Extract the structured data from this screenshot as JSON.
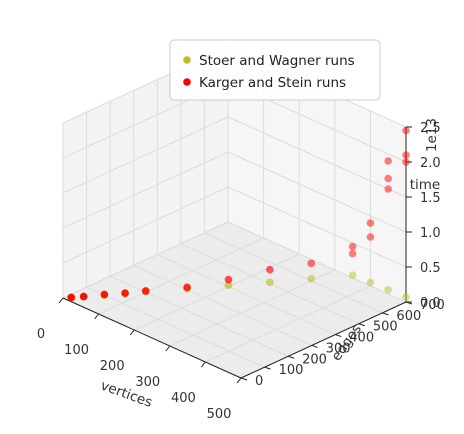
{
  "chart_data": {
    "type": "scatter",
    "projection": "3d",
    "grid": true,
    "legend_placement": "top-right",
    "xlabel": "vertices",
    "ylabel": "edges",
    "zlabel": "time",
    "z_offset_label": "1e13",
    "xlim": [
      0,
      500
    ],
    "ylim": [
      0,
      700
    ],
    "zlim": [
      0,
      2.5
    ],
    "x_ticks": [
      "0",
      "100",
      "200",
      "300",
      "400",
      "500"
    ],
    "y_ticks": [
      "0",
      "100",
      "200",
      "300",
      "400",
      "500",
      "600",
      "700"
    ],
    "z_ticks": [
      "0.0",
      "0.5",
      "1.0",
      "1.5",
      "2.0",
      "2.5"
    ],
    "series": [
      {
        "name": "Stoer and Wagner runs",
        "color": "#bcbd22",
        "points": [
          {
            "x": 10,
            "y": 20,
            "z": 0.0
          },
          {
            "x": 25,
            "y": 50,
            "z": 0.0
          },
          {
            "x": 50,
            "y": 100,
            "z": 0.0
          },
          {
            "x": 75,
            "y": 150,
            "z": 0.0
          },
          {
            "x": 100,
            "y": 200,
            "z": 0.01
          },
          {
            "x": 150,
            "y": 300,
            "z": 0.01
          },
          {
            "x": 200,
            "y": 400,
            "z": 0.02
          },
          {
            "x": 250,
            "y": 500,
            "z": 0.02
          },
          {
            "x": 300,
            "y": 600,
            "z": 0.03
          },
          {
            "x": 350,
            "y": 700,
            "z": 0.04
          },
          {
            "x": 400,
            "y": 700,
            "z": 0.05
          },
          {
            "x": 450,
            "y": 700,
            "z": 0.06
          },
          {
            "x": 500,
            "y": 700,
            "z": 0.07
          }
        ]
      },
      {
        "name": "Karger and Stein runs",
        "color": "#ff0000",
        "points": [
          {
            "x": 10,
            "y": 20,
            "z": 0.0
          },
          {
            "x": 25,
            "y": 50,
            "z": 0.0
          },
          {
            "x": 50,
            "y": 100,
            "z": 0.01
          },
          {
            "x": 75,
            "y": 150,
            "z": 0.01
          },
          {
            "x": 100,
            "y": 200,
            "z": 0.02
          },
          {
            "x": 150,
            "y": 300,
            "z": 0.03
          },
          {
            "x": 200,
            "y": 400,
            "z": 0.1
          },
          {
            "x": 250,
            "y": 500,
            "z": 0.2
          },
          {
            "x": 300,
            "y": 600,
            "z": 0.25
          },
          {
            "x": 350,
            "y": 700,
            "z": 0.35
          },
          {
            "x": 350,
            "y": 700,
            "z": 0.45
          },
          {
            "x": 400,
            "y": 700,
            "z": 0.7
          },
          {
            "x": 400,
            "y": 700,
            "z": 0.9
          },
          {
            "x": 450,
            "y": 700,
            "z": 1.5
          },
          {
            "x": 450,
            "y": 700,
            "z": 1.65
          },
          {
            "x": 450,
            "y": 700,
            "z": 1.9
          },
          {
            "x": 500,
            "y": 700,
            "z": 2.0
          },
          {
            "x": 500,
            "y": 700,
            "z": 2.1
          },
          {
            "x": 500,
            "y": 700,
            "z": 2.45
          }
        ]
      }
    ]
  }
}
